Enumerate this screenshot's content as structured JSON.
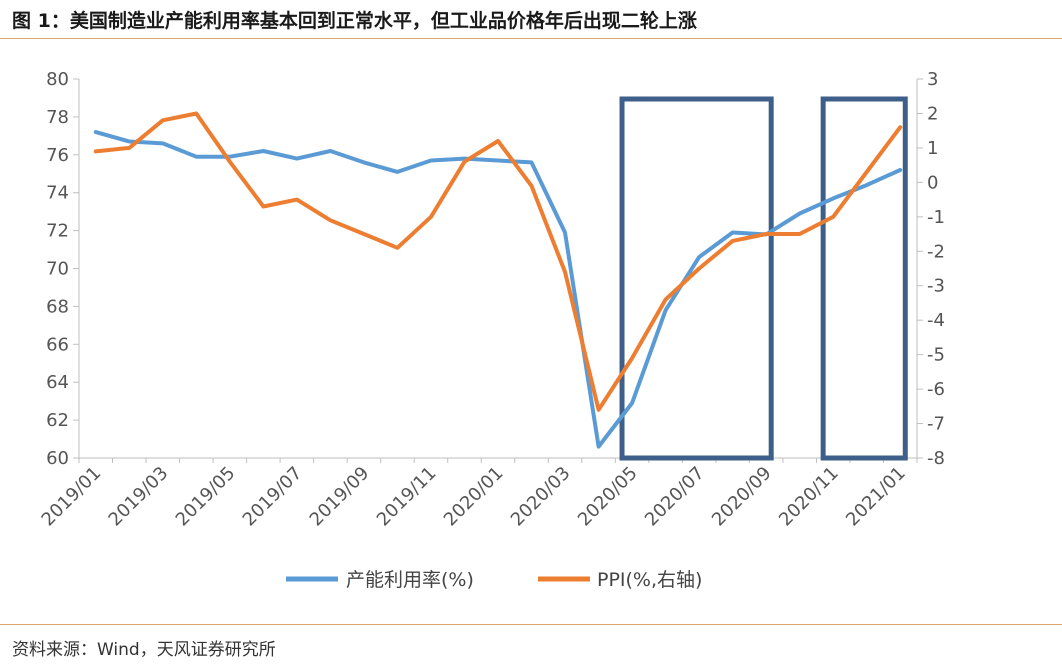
{
  "header": {
    "title": "图 1：美国制造业产能利用率基本回到正常水平，但工业品价格年后出现二轮上涨"
  },
  "footer": {
    "source": "资料来源：Wind，天风证券研究所"
  },
  "chart_data": {
    "type": "line",
    "title": "图 1：美国制造业产能利用率基本回到正常水平，但工业品价格年后出现二轮上涨",
    "x": [
      "2019/01",
      "2019/02",
      "2019/03",
      "2019/04",
      "2019/05",
      "2019/06",
      "2019/07",
      "2019/08",
      "2019/09",
      "2019/10",
      "2019/11",
      "2019/12",
      "2020/01",
      "2020/02",
      "2020/03",
      "2020/04",
      "2020/05",
      "2020/06",
      "2020/07",
      "2020/08",
      "2020/09",
      "2020/10",
      "2020/11",
      "2020/12",
      "2021/01"
    ],
    "x_tick_labels": [
      "2019/01",
      "2019/03",
      "2019/05",
      "2019/07",
      "2019/09",
      "2019/11",
      "2020/01",
      "2020/03",
      "2020/05",
      "2020/07",
      "2020/09",
      "2020/11",
      "2021/01"
    ],
    "y_left": {
      "min": 60,
      "max": 80,
      "ticks": [
        60,
        62,
        64,
        66,
        68,
        70,
        72,
        74,
        76,
        78,
        80
      ]
    },
    "y_right": {
      "min": -8,
      "max": 3,
      "ticks": [
        3,
        2,
        1,
        0,
        -1,
        -2,
        -3,
        -4,
        -5,
        -6,
        -7,
        -8
      ]
    },
    "grid": false,
    "legend_position": "bottom",
    "series": [
      {
        "name": "产能利用率(%)",
        "axis": "left",
        "color": "#5b9bd5",
        "values": [
          77.2,
          76.7,
          76.6,
          75.9,
          75.9,
          76.2,
          75.8,
          76.2,
          75.6,
          75.1,
          75.7,
          75.8,
          75.7,
          75.6,
          71.9,
          60.6,
          62.9,
          67.8,
          70.6,
          71.9,
          71.8,
          72.9,
          73.7,
          74.4,
          75.2
        ]
      },
      {
        "name": "PPI(%,右轴)",
        "axis": "right",
        "color": "#ed7d31",
        "values": [
          0.9,
          1.0,
          1.8,
          2.0,
          0.6,
          -0.7,
          -0.5,
          -1.1,
          -1.5,
          -1.9,
          -1.0,
          0.6,
          1.2,
          -0.1,
          -2.6,
          -6.6,
          -5.1,
          -3.4,
          -2.5,
          -1.7,
          -1.5,
          -1.5,
          -1.0,
          0.3,
          1.6
        ]
      }
    ],
    "highlight_boxes": [
      {
        "from": "2020/05",
        "to": "2020/09",
        "color": "#3d5f8a"
      },
      {
        "from": "2020/11",
        "to": "2021/01",
        "color": "#3d5f8a"
      }
    ]
  }
}
